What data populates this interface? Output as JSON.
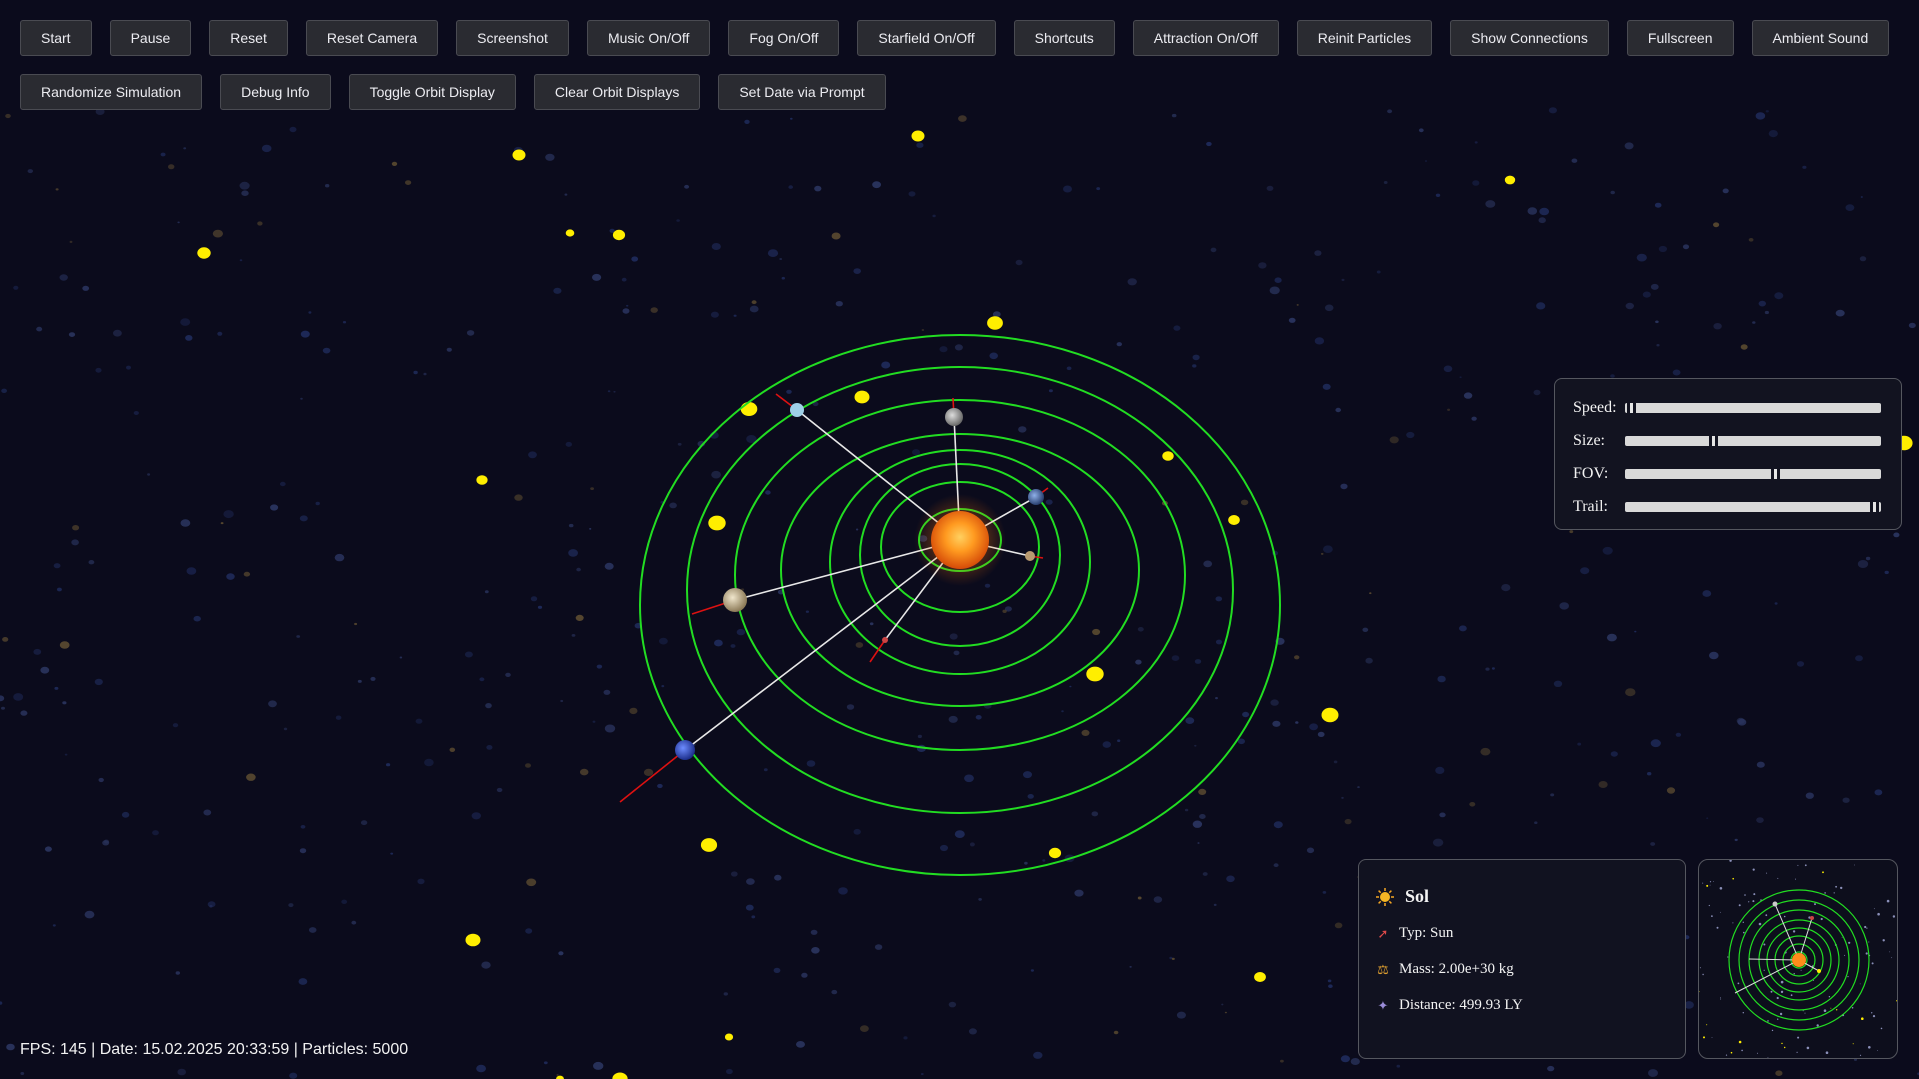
{
  "toolbar": {
    "row1": [
      "Start",
      "Pause",
      "Reset",
      "Reset Camera",
      "Screenshot",
      "Music On/Off",
      "Fog On/Off",
      "Starfield On/Off",
      "Shortcuts",
      "Attraction On/Off",
      "Reinit Particles",
      "Show Connections",
      "Fullscreen",
      "Ambient Sound"
    ],
    "row2": [
      "Randomize Simulation",
      "Debug Info",
      "Toggle Orbit Display",
      "Clear Orbit Displays",
      "Set Date via Prompt"
    ]
  },
  "sliders": {
    "speed": {
      "label": "Speed:",
      "value": 0.01
    },
    "size": {
      "label": "Size:",
      "value": 0.34
    },
    "fov": {
      "label": "FOV:",
      "value": 0.59
    },
    "trail": {
      "label": "Trail:",
      "value": 0.99
    }
  },
  "info": {
    "name": "Sol",
    "type": "Typ: Sun",
    "mass": "Mass: 2.00e+30 kg",
    "distance": "Distance: 499.93 LY",
    "icons": {
      "name": "sun-icon",
      "type": "rocket-icon",
      "mass": "scale-icon",
      "distance": "satellite-icon"
    }
  },
  "status": "FPS: 145 | Date: 15.02.2025 20:33:59 | Particles: 5000",
  "colors": {
    "background": "#0b0b1c",
    "orbit": "#22dd22",
    "sun": "#ff8c1a",
    "particle": "#ffee00",
    "connection": "#e8e8e8",
    "axis": "#dd1111"
  }
}
